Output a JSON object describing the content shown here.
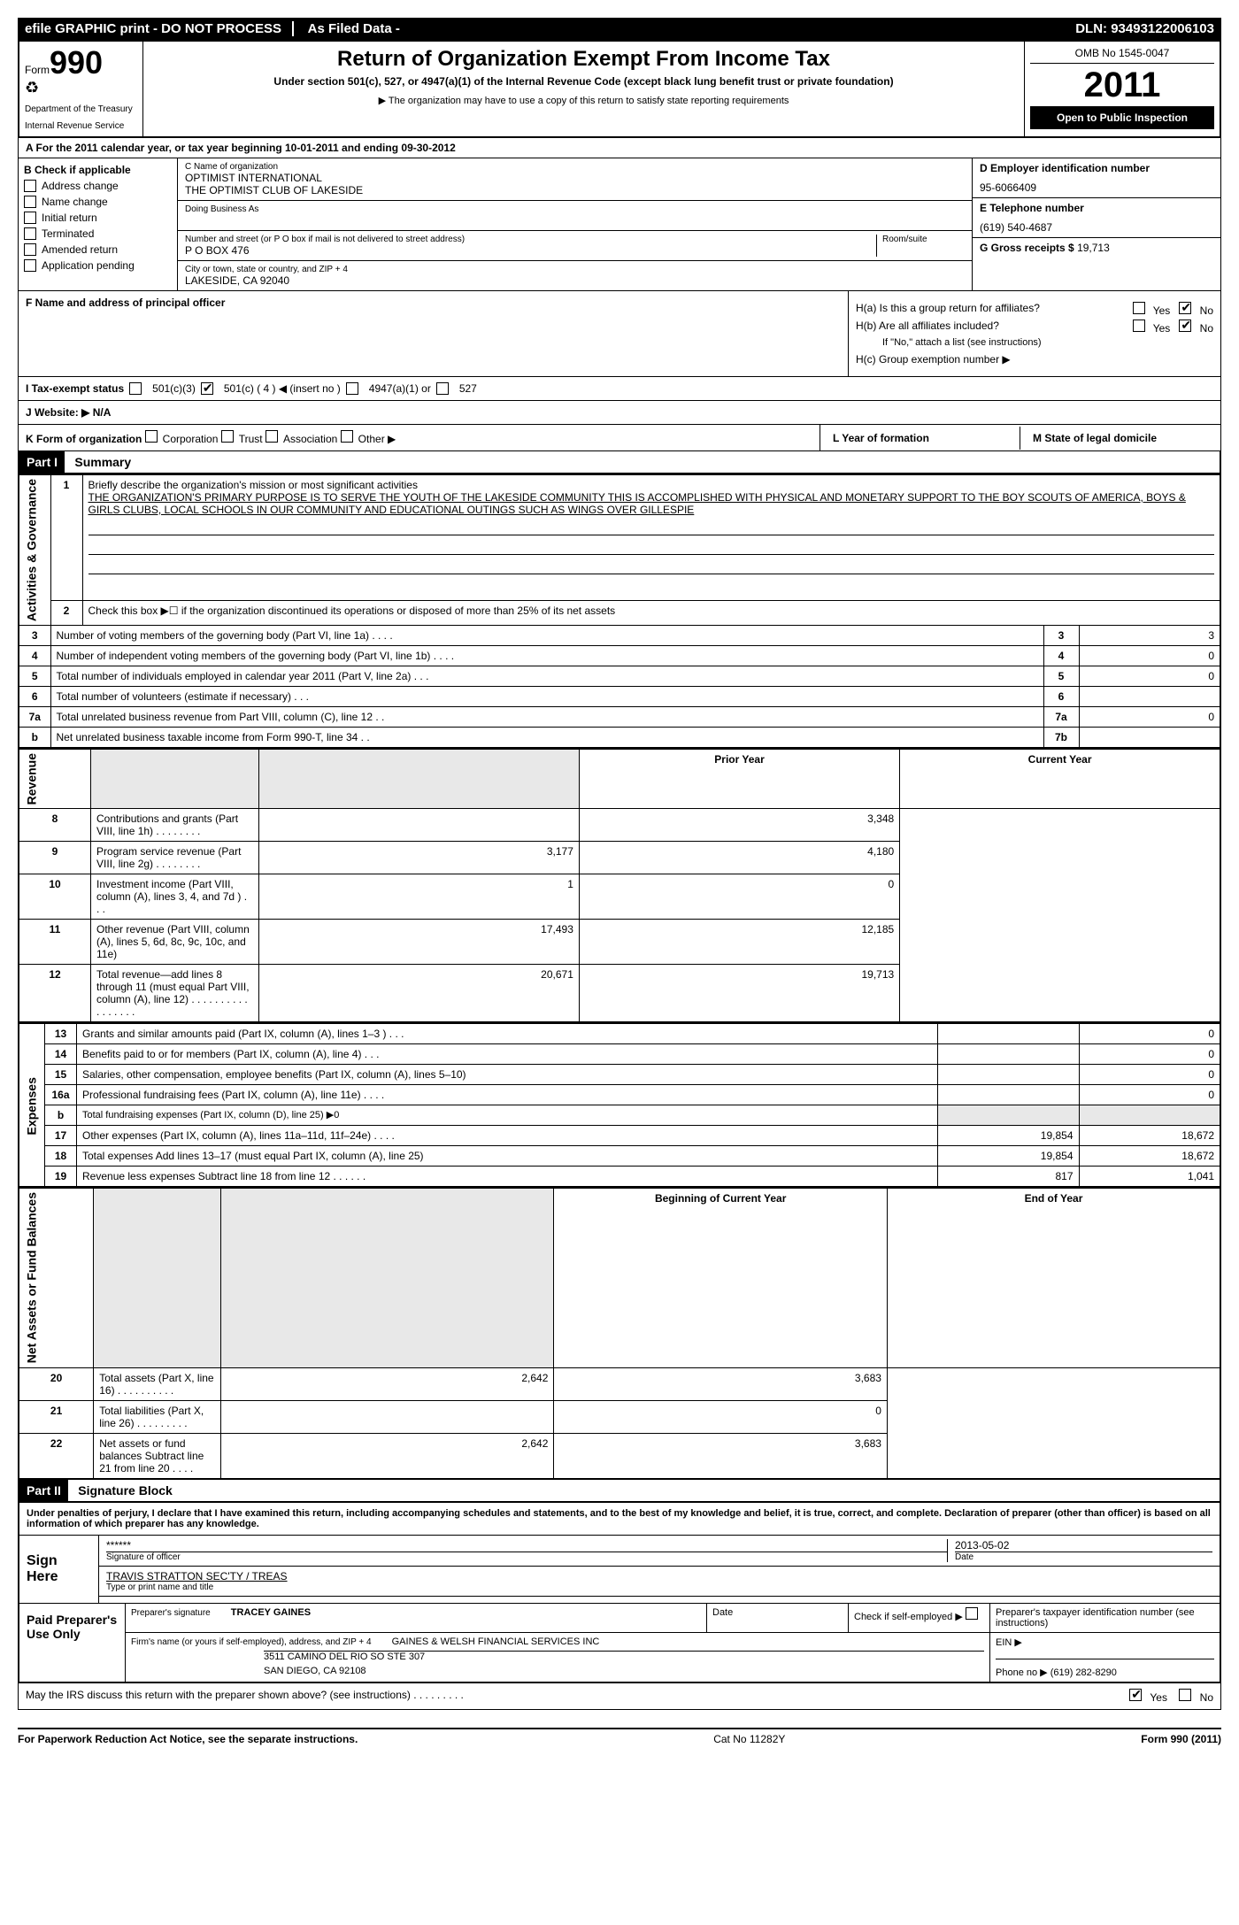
{
  "header_bar": {
    "efile": "efile GRAPHIC print - DO NOT PROCESS",
    "as_filed": "As Filed Data -",
    "dln_label": "DLN:",
    "dln": "93493122006103"
  },
  "form": {
    "form_label": "Form",
    "form_no": "990",
    "dept1": "Department of the Treasury",
    "dept2": "Internal Revenue Service",
    "title": "Return of Organization Exempt From Income Tax",
    "subtitle": "Under section 501(c), 527, or 4947(a)(1) of the Internal Revenue Code (except black lung benefit trust or private foundation)",
    "note": "▶ The organization may have to use a copy of this return to satisfy state reporting requirements",
    "omb": "OMB No 1545-0047",
    "year": "2011",
    "open_pub": "Open to Public Inspection"
  },
  "row_a": "A For the 2011 calendar year, or tax year beginning 10-01-2011   and ending 09-30-2012",
  "section_b": {
    "label": "B Check if applicable",
    "items": [
      "Address change",
      "Name change",
      "Initial return",
      "Terminated",
      "Amended return",
      "Application pending"
    ]
  },
  "section_c": {
    "name_label": "C Name of organization",
    "name1": "OPTIMIST INTERNATIONAL",
    "name2": "THE OPTIMIST CLUB OF LAKESIDE",
    "dba_label": "Doing Business As",
    "street_label": "Number and street (or P O  box if mail is not delivered to street address)",
    "room_label": "Room/suite",
    "street": "P O BOX 476",
    "city_label": "City or town, state or country, and ZIP + 4",
    "city": "LAKESIDE, CA  92040"
  },
  "section_d": {
    "label": "D Employer identification number",
    "ein": "95-6066409",
    "tel_label": "E Telephone number",
    "tel": "(619) 540-4687",
    "gross_label": "G Gross receipts $",
    "gross": "19,713"
  },
  "section_f": {
    "label": "F    Name and address of principal officer"
  },
  "section_h": {
    "ha": "H(a)  Is this a group return for affiliates?",
    "hb": "H(b)  Are all affiliates included?",
    "hb_note": "If \"No,\" attach a list  (see instructions)",
    "hc": "H(c)   Group exemption number ▶"
  },
  "row_i": {
    "label": "I   Tax-exempt status",
    "opt1": "501(c)(3)",
    "opt2": "501(c) ( 4 ) ◀ (insert no )",
    "opt3": "4947(a)(1) or",
    "opt4": "527"
  },
  "row_j": "J   Website: ▶  N/A",
  "row_k": {
    "k": "K Form of organization",
    "opts": [
      "Corporation",
      "Trust",
      "Association",
      "Other ▶"
    ],
    "l": "L Year of formation",
    "m": "M State of legal domicile"
  },
  "part1": {
    "part": "Part I",
    "title": "Summary",
    "side_ag": "Activities & Governance",
    "side_rev": "Revenue",
    "side_exp": "Expenses",
    "side_net": "Net Assets or Fund Balances",
    "q1": "Briefly describe the organization's mission or most significant activities",
    "mission": "THE ORGANIZATION'S PRIMARY PURPOSE IS TO SERVE THE YOUTH OF THE LAKESIDE COMMUNITY  THIS IS ACCOMPLISHED WITH PHYSICAL AND MONETARY SUPPORT TO THE BOY SCOUTS OF AMERICA, BOYS & GIRLS CLUBS, LOCAL SCHOOLS IN OUR COMMUNITY AND EDUCATIONAL OUTINGS SUCH AS WINGS OVER GILLESPIE",
    "q2": "Check this box ▶☐ if the organization discontinued its operations or disposed of more than 25% of its net assets",
    "rows_ag": [
      {
        "n": "3",
        "t": "Number of voting members of the governing body (Part VI, line 1a)  .    .    .    .",
        "box": "3",
        "v": "3"
      },
      {
        "n": "4",
        "t": "Number of independent voting members of the governing body (Part VI, line 1b)  .    .    .    .",
        "box": "4",
        "v": "0"
      },
      {
        "n": "5",
        "t": "Total number of individuals employed in calendar year 2011 (Part V, line 2a)  .    .    .",
        "box": "5",
        "v": "0"
      },
      {
        "n": "6",
        "t": "Total number of volunteers (estimate if necessary)  .    .    .",
        "box": "6",
        "v": ""
      },
      {
        "n": "7a",
        "t": "Total unrelated business revenue from Part VIII, column (C), line 12  .    .",
        "box": "7a",
        "v": "0"
      },
      {
        "n": "b",
        "t": "Net unrelated business taxable income from Form 990-T, line 34  .    .",
        "box": "7b",
        "v": ""
      }
    ],
    "col_prior": "Prior Year",
    "col_curr": "Current Year",
    "rows_rev": [
      {
        "n": "8",
        "t": "Contributions and grants (Part VIII, line 1h)  .    .    .    .    .    .    .    .",
        "p": "",
        "c": "3,348"
      },
      {
        "n": "9",
        "t": "Program service revenue (Part VIII, line 2g)  .    .    .    .    .    .    .    .",
        "p": "3,177",
        "c": "4,180"
      },
      {
        "n": "10",
        "t": "Investment income (Part VIII, column (A), lines 3, 4, and 7d )  .    .    .",
        "p": "1",
        "c": "0"
      },
      {
        "n": "11",
        "t": "Other revenue (Part VIII, column (A), lines 5, 6d, 8c, 9c, 10c, and 11e)",
        "p": "17,493",
        "c": "12,185"
      },
      {
        "n": "12",
        "t": "Total revenue—add lines 8 through 11 (must equal Part VIII, column (A), line 12)  .    .    .    .    .    .    .    .    .    .    .    .    .    .    .    .    .",
        "p": "20,671",
        "c": "19,713"
      }
    ],
    "rows_exp": [
      {
        "n": "13",
        "t": "Grants and similar amounts paid (Part IX, column (A), lines 1–3 )  .    .    .",
        "p": "",
        "c": "0"
      },
      {
        "n": "14",
        "t": "Benefits paid to or for members (Part IX, column (A), line 4)  .    .    .",
        "p": "",
        "c": "0"
      },
      {
        "n": "15",
        "t": "Salaries, other compensation, employee benefits (Part IX, column (A), lines 5–10)",
        "p": "",
        "c": "0"
      },
      {
        "n": "16a",
        "t": "Professional fundraising fees (Part IX, column (A), line 11e)  .    .    .    .",
        "p": "",
        "c": "0"
      },
      {
        "n": "b",
        "t": "Total fundraising expenses (Part IX, column (D), line 25) ▶0",
        "p": "shade",
        "c": "shade"
      },
      {
        "n": "17",
        "t": "Other expenses (Part IX, column (A), lines 11a–11d, 11f–24e)  .    .    .    .",
        "p": "19,854",
        "c": "18,672"
      },
      {
        "n": "18",
        "t": "Total expenses  Add lines 13–17 (must equal Part IX, column (A), line 25)",
        "p": "19,854",
        "c": "18,672"
      },
      {
        "n": "19",
        "t": "Revenue less expenses  Subtract line 18 from line 12  .    .    .    .    .    .",
        "p": "817",
        "c": "1,041"
      }
    ],
    "col_begin": "Beginning of Current Year",
    "col_end": "End of Year",
    "rows_net": [
      {
        "n": "20",
        "t": "Total assets (Part X, line 16)  .    .    .    .    .    .    .    .    .    .",
        "p": "2,642",
        "c": "3,683"
      },
      {
        "n": "21",
        "t": "Total liabilities (Part X, line 26)  .    .    .    .    .    .    .    .    .",
        "p": "",
        "c": "0"
      },
      {
        "n": "22",
        "t": "Net assets or fund balances  Subtract line 21 from line 20  .    .    .    .",
        "p": "2,642",
        "c": "3,683"
      }
    ]
  },
  "part2": {
    "part": "Part II",
    "title": "Signature Block",
    "declare": "Under penalties of perjury, I declare that I have examined this return, including accompanying schedules and statements, and to the best of my knowledge and belief, it is true, correct, and complete. Declaration of preparer (other than officer) is based on all information of which preparer has any knowledge.",
    "sign_here": "Sign Here",
    "stars": "******",
    "sig_officer": "Signature of officer",
    "date_label": "Date",
    "date": "2013-05-02",
    "name": "TRAVIS STRATTON SEC'TY / TREAS",
    "name_label": "Type or print name and title",
    "paid_prep": "Paid Preparer's Use Only",
    "prep_sig_label": "Preparer's signature",
    "prep_name": "TRACEY GAINES",
    "prep_date_label": "Date",
    "check_self": "Check if self-employed ▶",
    "ptin_label": "Preparer's taxpayer identification number (see instructions)",
    "firm_label": "Firm's name (or yours if self-employed), address, and ZIP + 4",
    "firm_name": "GAINES & WELSH FINANCIAL SERVICES INC",
    "firm_addr1": "3511 CAMINO DEL RIO SO STE 307",
    "firm_addr2": "SAN DIEGO, CA  92108",
    "ein_label": "EIN  ▶",
    "phone_label": "Phone no  ▶",
    "phone": "(619) 282-8290",
    "discuss": "May the IRS discuss this return with the preparer shown above? (see instructions)  .    .    .    .    .    .    .    .    .",
    "yes": "Yes",
    "no": "No"
  },
  "footer": {
    "left": "For Paperwork Reduction Act Notice, see the separate instructions.",
    "mid": "Cat No 11282Y",
    "right": "Form 990 (2011)"
  }
}
